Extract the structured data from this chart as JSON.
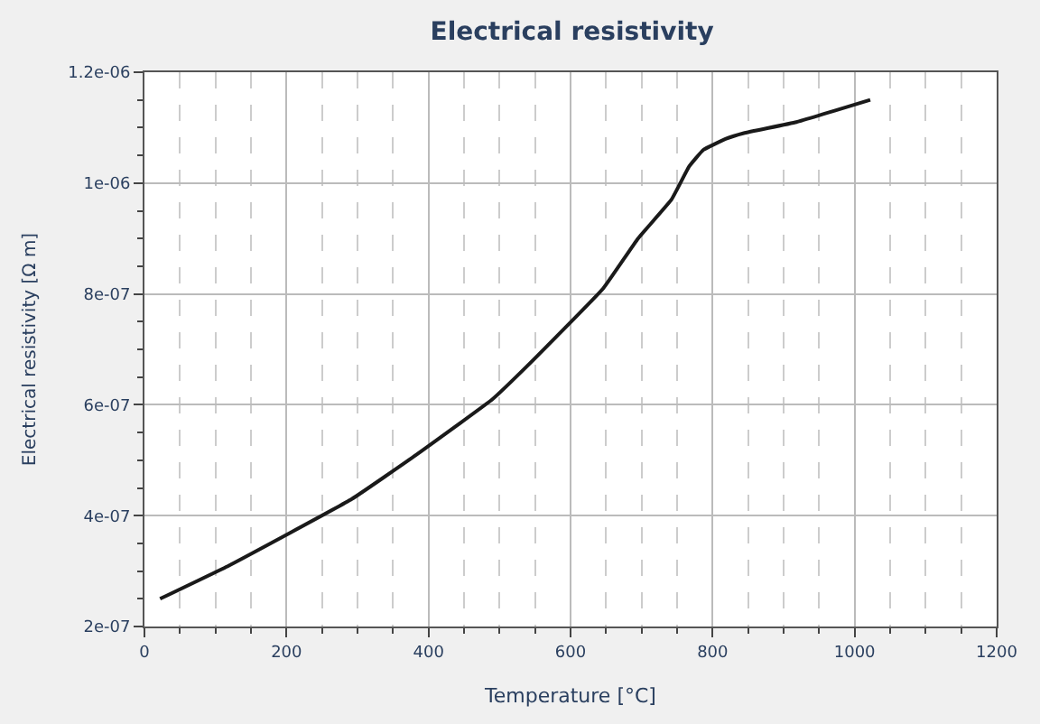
{
  "chart_data": {
    "type": "line",
    "title": "Electrical resistivity",
    "xlabel": "Temperature [°C]",
    "ylabel": "Electrical resistivity [Ω m]",
    "x": [
      22,
      119,
      292,
      383,
      490,
      539,
      646,
      695,
      742,
      767,
      787,
      819,
      844,
      918,
      1022
    ],
    "series": [
      {
        "color": "#1a1a1a",
        "values": [
          2.5e-07,
          3.1e-07,
          4.3e-07,
          5.1e-07,
          6.1e-07,
          6.7e-07,
          8.1e-07,
          9e-07,
          9.7e-07,
          1.03e-06,
          1.06e-06,
          1.08e-06,
          1.09e-06,
          1.11e-06,
          1.15e-06
        ]
      }
    ],
    "xlim": [
      0,
      1200
    ],
    "xticks": [
      0,
      200,
      400,
      600,
      800,
      1000,
      1200
    ],
    "ylim": [
      2e-07,
      1.2e-06
    ],
    "yticks": [
      {
        "value": 2e-07,
        "label": "2e-07"
      },
      {
        "value": 4e-07,
        "label": "4e-07"
      },
      {
        "value": 6e-07,
        "label": "6e-07"
      },
      {
        "value": 8e-07,
        "label": "8e-07"
      },
      {
        "value": 1e-06,
        "label": "1e-06"
      },
      {
        "value": 1.2e-06,
        "label": "1.2e-06"
      }
    ],
    "grid": true,
    "legend": false,
    "marker": "none",
    "line_style": "solid"
  }
}
